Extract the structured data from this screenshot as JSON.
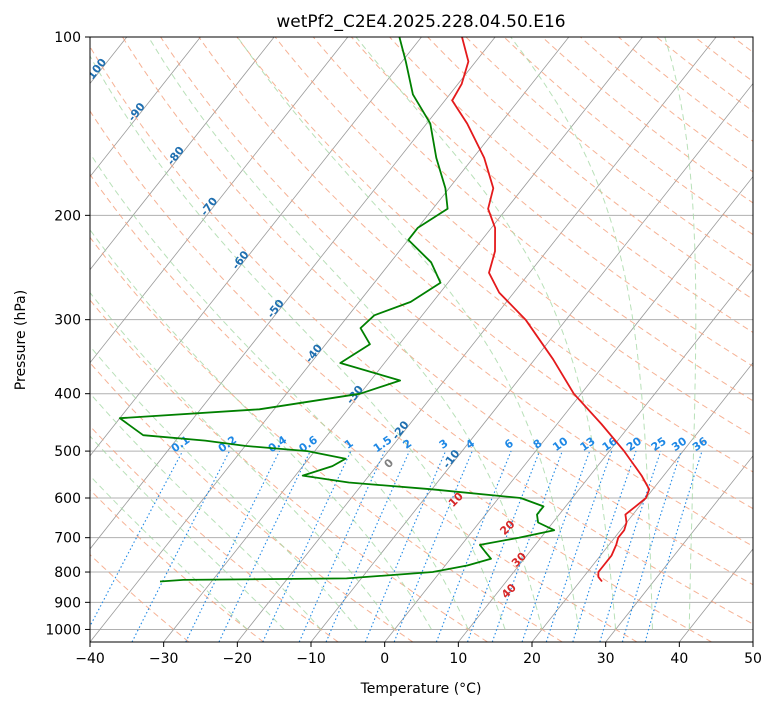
{
  "chart_data": {
    "type": "line",
    "title": "wetPf2_C2E4.2025.228.04.50.E16",
    "xlabel": "Temperature (°C)",
    "ylabel": "Pressure (hPa)",
    "xlim": [
      -40,
      50
    ],
    "ylim": [
      1050,
      100
    ],
    "y_scale": "log",
    "grid": true,
    "x_ticks": [
      -40,
      -30,
      -20,
      -10,
      0,
      10,
      20,
      30,
      40,
      50
    ],
    "y_ticks": [
      100,
      200,
      300,
      400,
      500,
      600,
      700,
      800,
      900,
      1000
    ],
    "skew": true,
    "series": [
      {
        "role": "temperature",
        "color": "#e41a1c",
        "points": [
          {
            "p": 830,
            "t": 23.0
          },
          {
            "p": 815,
            "t": 22.0
          },
          {
            "p": 800,
            "t": 21.5
          },
          {
            "p": 780,
            "t": 21.5
          },
          {
            "p": 750,
            "t": 21.5
          },
          {
            "p": 720,
            "t": 21.0
          },
          {
            "p": 700,
            "t": 20.5
          },
          {
            "p": 680,
            "t": 20.5
          },
          {
            "p": 660,
            "t": 20.0
          },
          {
            "p": 650,
            "t": 19.5
          },
          {
            "p": 640,
            "t": 19.0
          },
          {
            "p": 620,
            "t": 19.5
          },
          {
            "p": 600,
            "t": 20.0
          },
          {
            "p": 580,
            "t": 19.5
          },
          {
            "p": 550,
            "t": 17.0
          },
          {
            "p": 500,
            "t": 12.0
          },
          {
            "p": 450,
            "t": 6.0
          },
          {
            "p": 400,
            "t": -1.0
          },
          {
            "p": 350,
            "t": -7.5
          },
          {
            "p": 300,
            "t": -15.5
          },
          {
            "p": 270,
            "t": -22.0
          },
          {
            "p": 250,
            "t": -25.5
          },
          {
            "p": 230,
            "t": -27.0
          },
          {
            "p": 210,
            "t": -29.5
          },
          {
            "p": 195,
            "t": -32.5
          },
          {
            "p": 180,
            "t": -34.0
          },
          {
            "p": 160,
            "t": -38.5
          },
          {
            "p": 140,
            "t": -44.5
          },
          {
            "p": 128,
            "t": -49.0
          },
          {
            "p": 120,
            "t": -49.5
          },
          {
            "p": 110,
            "t": -51.0
          },
          {
            "p": 100,
            "t": -54.5
          }
        ]
      },
      {
        "role": "dewpoint",
        "color": "#008000",
        "points": [
          {
            "p": 830,
            "t": -37.0
          },
          {
            "p": 825,
            "t": -34.0
          },
          {
            "p": 820,
            "t": -12.0
          },
          {
            "p": 800,
            "t": -1.0
          },
          {
            "p": 780,
            "t": 3.0
          },
          {
            "p": 760,
            "t": 5.5
          },
          {
            "p": 740,
            "t": 4.0
          },
          {
            "p": 720,
            "t": 2.5
          },
          {
            "p": 700,
            "t": 7.0
          },
          {
            "p": 680,
            "t": 11.0
          },
          {
            "p": 660,
            "t": 8.0
          },
          {
            "p": 640,
            "t": 7.0
          },
          {
            "p": 620,
            "t": 7.0
          },
          {
            "p": 600,
            "t": 3.0
          },
          {
            "p": 580,
            "t": -10.0
          },
          {
            "p": 565,
            "t": -22.0
          },
          {
            "p": 550,
            "t": -29.0
          },
          {
            "p": 530,
            "t": -26.0
          },
          {
            "p": 515,
            "t": -25.0
          },
          {
            "p": 500,
            "t": -31.0
          },
          {
            "p": 490,
            "t": -40.0
          },
          {
            "p": 480,
            "t": -46.0
          },
          {
            "p": 470,
            "t": -55.0
          },
          {
            "p": 440,
            "t": -60.0
          },
          {
            "p": 425,
            "t": -42.0
          },
          {
            "p": 400,
            "t": -30.0
          },
          {
            "p": 380,
            "t": -26.0
          },
          {
            "p": 355,
            "t": -36.0
          },
          {
            "p": 330,
            "t": -34.0
          },
          {
            "p": 310,
            "t": -37.0
          },
          {
            "p": 295,
            "t": -36.5
          },
          {
            "p": 280,
            "t": -33.0
          },
          {
            "p": 260,
            "t": -31.0
          },
          {
            "p": 240,
            "t": -34.5
          },
          {
            "p": 220,
            "t": -40.0
          },
          {
            "p": 210,
            "t": -40.0
          },
          {
            "p": 195,
            "t": -38.0
          },
          {
            "p": 180,
            "t": -40.5
          },
          {
            "p": 160,
            "t": -45.0
          },
          {
            "p": 140,
            "t": -49.5
          },
          {
            "p": 125,
            "t": -55.0
          },
          {
            "p": 110,
            "t": -59.5
          },
          {
            "p": 100,
            "t": -63.0
          }
        ]
      }
    ],
    "mixing_ratio_labels": [
      "0.1",
      "0.2",
      "0.4",
      "0.6",
      "1",
      "1.5",
      "2",
      "3",
      "4",
      "6",
      "8",
      "10",
      "13",
      "16",
      "20",
      "25",
      "30",
      "36"
    ],
    "moist_adiabat_labels": [
      "-100",
      "-90",
      "-80",
      "-70",
      "-60",
      "-50",
      "-40",
      "-30",
      "-20",
      "-10"
    ],
    "dry_adiabat_labels": [
      "0",
      "10",
      "20",
      "30",
      "40"
    ],
    "colors": {
      "temperature": "#e41a1c",
      "dewpoint": "#008000",
      "grid": "#b0b0b0",
      "isotherm": "#9a9a9a",
      "dry_adiabat": "#f4a582",
      "moist_adiabat": "#a6d8a6",
      "mixing_ratio": "#1e88e5",
      "moist_label": "#1f6fb0",
      "dry_label": "#d62728",
      "zero_label": "#808080"
    }
  }
}
